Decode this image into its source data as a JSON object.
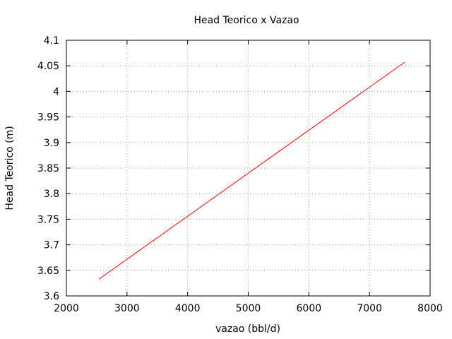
{
  "chart_data": {
    "type": "line",
    "title": "Head Teorico x Vazao",
    "xlabel": "vazao (bbl/d)",
    "ylabel": "Head Teorico (m)",
    "xlim": [
      2000,
      8000
    ],
    "ylim": [
      3.6,
      4.1
    ],
    "xticks": [
      "2000",
      "3000",
      "4000",
      "5000",
      "6000",
      "7000",
      "8000"
    ],
    "yticks": [
      "3.6",
      "3.65",
      "3.7",
      "3.75",
      "3.8",
      "3.85",
      "3.9",
      "3.95",
      "4",
      "4.05",
      "4.1"
    ],
    "grid": true,
    "legend": "none",
    "series": [
      {
        "color": "#ff0000",
        "x": [
          2540,
          7580
        ],
        "y": [
          3.633,
          4.057
        ]
      }
    ]
  }
}
